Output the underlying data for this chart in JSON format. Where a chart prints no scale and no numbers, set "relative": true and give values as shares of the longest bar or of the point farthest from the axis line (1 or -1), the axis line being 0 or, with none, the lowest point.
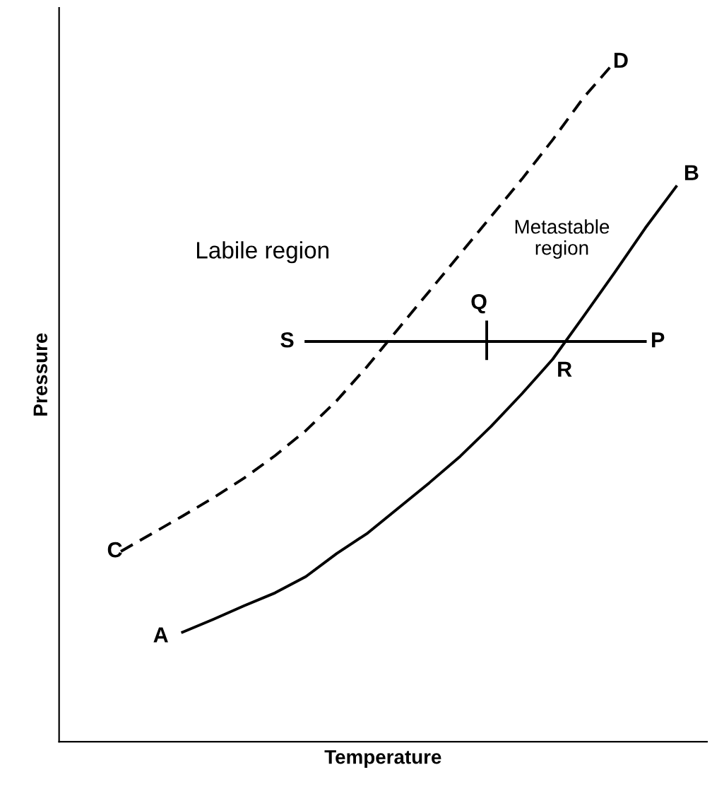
{
  "chart_data": {
    "type": "line",
    "relative": true,
    "xlabel": "Temperature",
    "ylabel": "Pressure",
    "categories": [
      null,
      null,
      null,
      null,
      null,
      null,
      null,
      null,
      null,
      null,
      null,
      null,
      null,
      null,
      null,
      null,
      null,
      null,
      null,
      null,
      null,
      null
    ],
    "series": [
      {
        "color": "#000000",
        "line_style": "solid",
        "values": [
          null,
          null,
          null,
          null,
          0.161,
          0.18,
          0.2,
          0.219,
          0.243,
          0.277,
          0.307,
          0.344,
          0.381,
          0.42,
          0.464,
          0.512,
          0.563,
          0.626,
          0.69,
          0.756,
          0.817,
          null
        ]
      },
      {
        "color": "#000000",
        "line_style": "dashed",
        "values": [
          null,
          null,
          0.28,
          0.306,
          0.332,
          0.359,
          0.388,
          0.421,
          0.458,
          0.502,
          0.553,
          0.608,
          0.663,
          0.718,
          0.773,
          0.828,
          0.886,
          0.948,
          1.0,
          null,
          null,
          null
        ]
      },
      {
        "color": "#000000",
        "line_style": "solid",
        "values": [
          null,
          null,
          null,
          null,
          null,
          null,
          null,
          null,
          0.589,
          0.589,
          0.589,
          0.589,
          0.589,
          0.589,
          0.589,
          0.589,
          0.589,
          0.589,
          0.589,
          0.589,
          null,
          null
        ]
      }
    ],
    "annotations": [
      "A",
      "B",
      "C",
      "D",
      "S",
      "P",
      "Q",
      "R",
      "Labile region",
      "Metastable region"
    ]
  }
}
